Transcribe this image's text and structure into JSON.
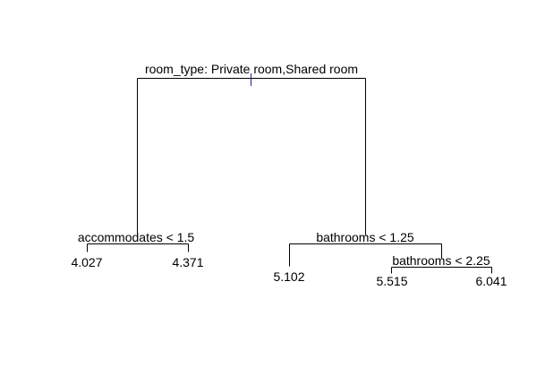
{
  "tree": {
    "root_split": "room_type: Private room,Shared room",
    "left_split": "accommodates < 1.5",
    "right_split": "bathrooms < 1.25",
    "right_right_split": "bathrooms < 2.25",
    "leaves": {
      "left_left": "4.027",
      "left_right": "4.371",
      "right_left": "5.102",
      "right_right_left": "5.515",
      "right_right_right": "6.041"
    }
  },
  "colors": {
    "background": "#ffffff",
    "lines": "#000000",
    "root_marker": "#1a237e"
  }
}
